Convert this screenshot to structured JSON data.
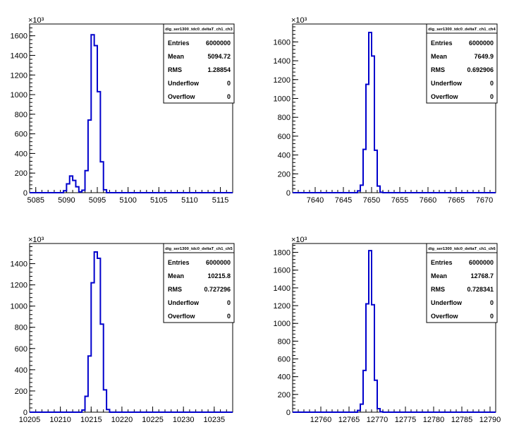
{
  "chart_data": [
    {
      "type": "bar",
      "title": "",
      "exponent_label": "×10³",
      "ylim": [
        0,
        1720
      ],
      "yticks": [
        0,
        200,
        400,
        600,
        800,
        1000,
        1200,
        1400,
        1600
      ],
      "ytick_labels": [
        "0",
        "200",
        "400",
        "600",
        "800",
        "1000",
        "1200",
        "1400",
        "1600"
      ],
      "xlim": [
        5084,
        5117
      ],
      "xticks": [
        5085,
        5090,
        5095,
        5100,
        5105,
        5110,
        5115
      ],
      "xtick_labels": [
        "5085",
        "5090",
        "5095",
        "5100",
        "5105",
        "5110",
        "5115"
      ],
      "bin_width": 0.5,
      "bins": [
        {
          "x": 5089.5,
          "value": 20
        },
        {
          "x": 5090.0,
          "value": 90
        },
        {
          "x": 5090.5,
          "value": 170
        },
        {
          "x": 5091.0,
          "value": 125
        },
        {
          "x": 5091.5,
          "value": 60
        },
        {
          "x": 5092.0,
          "value": 8
        },
        {
          "x": 5092.5,
          "value": 25
        },
        {
          "x": 5093.0,
          "value": 225
        },
        {
          "x": 5093.5,
          "value": 740
        },
        {
          "x": 5094.0,
          "value": 1610
        },
        {
          "x": 5094.5,
          "value": 1500
        },
        {
          "x": 5095.0,
          "value": 1030
        },
        {
          "x": 5095.5,
          "value": 315
        },
        {
          "x": 5096.0,
          "value": 30
        }
      ],
      "stats": {
        "name": "dig_ser1300_tdc0_deltaT_ch1_ch3",
        "rows": [
          {
            "label": "Entries",
            "value": "6000000"
          },
          {
            "label": "Mean",
            "value": "5094.72"
          },
          {
            "label": "RMS",
            "value": "1.28854"
          },
          {
            "label": "Underflow",
            "value": "0"
          },
          {
            "label": "Overflow",
            "value": "0"
          }
        ]
      }
    },
    {
      "type": "bar",
      "title": "",
      "exponent_label": "×10³",
      "ylim": [
        0,
        1790
      ],
      "yticks": [
        0,
        200,
        400,
        600,
        800,
        1000,
        1200,
        1400,
        1600
      ],
      "ytick_labels": [
        "0",
        "200",
        "400",
        "600",
        "800",
        "1000",
        "1200",
        "1400",
        "1600"
      ],
      "xlim": [
        7636,
        7672
      ],
      "xticks": [
        7640,
        7645,
        7650,
        7655,
        7660,
        7665,
        7670
      ],
      "xtick_labels": [
        "7640",
        "7645",
        "7650",
        "7655",
        "7660",
        "7665",
        "7670"
      ],
      "bin_width": 0.5,
      "bins": [
        {
          "x": 7647.5,
          "value": 20
        },
        {
          "x": 7648.0,
          "value": 80
        },
        {
          "x": 7648.5,
          "value": 460
        },
        {
          "x": 7649.0,
          "value": 1150
        },
        {
          "x": 7649.5,
          "value": 1700
        },
        {
          "x": 7650.0,
          "value": 1450
        },
        {
          "x": 7650.5,
          "value": 450
        },
        {
          "x": 7651.0,
          "value": 70
        },
        {
          "x": 7651.5,
          "value": 5
        }
      ],
      "stats": {
        "name": "dig_ser1300_tdc0_deltaT_ch1_ch4",
        "rows": [
          {
            "label": "Entries",
            "value": "6000000"
          },
          {
            "label": "Mean",
            "value": "7649.9"
          },
          {
            "label": "RMS",
            "value": "0.692906"
          },
          {
            "label": "Underflow",
            "value": "0"
          },
          {
            "label": "Overflow",
            "value": "0"
          }
        ]
      }
    },
    {
      "type": "bar",
      "title": "",
      "exponent_label": "×10³",
      "ylim": [
        0,
        1590
      ],
      "yticks": [
        0,
        200,
        400,
        600,
        800,
        1000,
        1200,
        1400
      ],
      "ytick_labels": [
        "0",
        "200",
        "400",
        "600",
        "800",
        "1000",
        "1200",
        "1400"
      ],
      "xlim": [
        10205,
        10238
      ],
      "xticks": [
        10205,
        10210,
        10215,
        10220,
        10225,
        10230,
        10235
      ],
      "xtick_labels": [
        "10205",
        "10210",
        "10215",
        "10220",
        "10225",
        "10230",
        "10235"
      ],
      "bin_width": 0.5,
      "bins": [
        {
          "x": 10213.5,
          "value": 20
        },
        {
          "x": 10214.0,
          "value": 150
        },
        {
          "x": 10214.5,
          "value": 530
        },
        {
          "x": 10215.0,
          "value": 1220
        },
        {
          "x": 10215.5,
          "value": 1510
        },
        {
          "x": 10216.0,
          "value": 1450
        },
        {
          "x": 10216.5,
          "value": 830
        },
        {
          "x": 10217.0,
          "value": 210
        },
        {
          "x": 10217.5,
          "value": 25
        }
      ],
      "stats": {
        "name": "dig_ser1300_tdc0_deltaT_ch1_ch5",
        "rows": [
          {
            "label": "Entries",
            "value": "6000000"
          },
          {
            "label": "Mean",
            "value": "10215.8"
          },
          {
            "label": "RMS",
            "value": "0.727296"
          },
          {
            "label": "Underflow",
            "value": "0"
          },
          {
            "label": "Overflow",
            "value": "0"
          }
        ]
      }
    },
    {
      "type": "bar",
      "title": "",
      "exponent_label": "×10³",
      "ylim": [
        0,
        1900
      ],
      "yticks": [
        0,
        200,
        400,
        600,
        800,
        1000,
        1200,
        1400,
        1600,
        1800
      ],
      "ytick_labels": [
        "0",
        "200",
        "400",
        "600",
        "800",
        "1000",
        "1200",
        "1400",
        "1600",
        "1800"
      ],
      "xlim": [
        12755,
        12791
      ],
      "xticks": [
        12760,
        12765,
        12770,
        12775,
        12780,
        12785,
        12790
      ],
      "xtick_labels": [
        "12760",
        "12765",
        "12770",
        "12775",
        "12780",
        "12785",
        "12790"
      ],
      "bin_width": 0.5,
      "bins": [
        {
          "x": 12766.5,
          "value": 20
        },
        {
          "x": 12767.0,
          "value": 90
        },
        {
          "x": 12767.5,
          "value": 470
        },
        {
          "x": 12768.0,
          "value": 1220
        },
        {
          "x": 12768.5,
          "value": 1820
        },
        {
          "x": 12769.0,
          "value": 1210
        },
        {
          "x": 12769.5,
          "value": 360
        },
        {
          "x": 12770.0,
          "value": 40
        },
        {
          "x": 12770.5,
          "value": 5
        }
      ],
      "stats": {
        "name": "dig_ser1300_tdc0_deltaT_ch1_ch6",
        "rows": [
          {
            "label": "Entries",
            "value": "6000000"
          },
          {
            "label": "Mean",
            "value": "12768.7"
          },
          {
            "label": "RMS",
            "value": "0.728341"
          },
          {
            "label": "Underflow",
            "value": "0"
          },
          {
            "label": "Overflow",
            "value": "0"
          }
        ]
      }
    }
  ],
  "colors": {
    "histogram_line": "#0000cc",
    "axis": "#000000",
    "background": "#ffffff"
  }
}
